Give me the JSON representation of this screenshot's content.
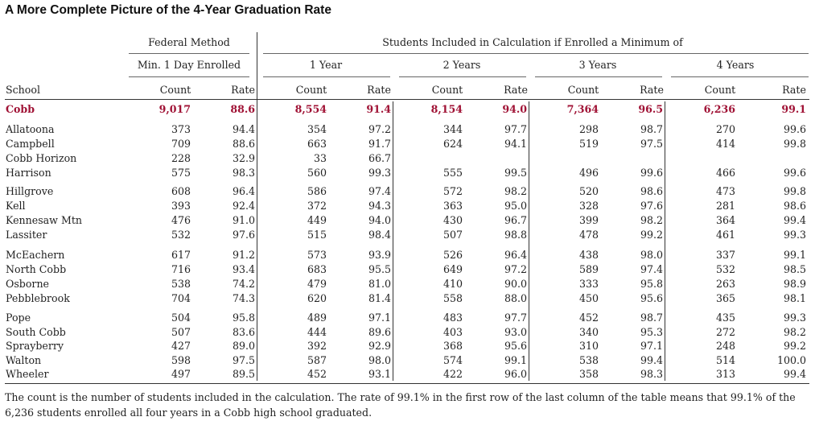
{
  "title": "A More Complete Picture of the 4-Year Graduation Rate",
  "header": {
    "federal_method": "Federal Method",
    "federal_sub": "Min. 1 Day Enrolled",
    "students_included": "Students Included in Calculation if Enrolled a Minimum of",
    "groups": [
      "1 Year",
      "2 Years",
      "3 Years",
      "4 Years"
    ],
    "school": "School",
    "count": "Count",
    "rate": "Rate"
  },
  "total": {
    "school": "Cobb",
    "values": [
      "9,017",
      "88.6",
      "8,554",
      "91.4",
      "8,154",
      "94.0",
      "7,364",
      "96.5",
      "6,236",
      "99.1"
    ]
  },
  "rows": [
    {
      "school": "Allatoona",
      "values": [
        "373",
        "94.4",
        "354",
        "97.2",
        "344",
        "97.7",
        "298",
        "98.7",
        "270",
        "99.6"
      ]
    },
    {
      "school": "Campbell",
      "values": [
        "709",
        "88.6",
        "663",
        "91.7",
        "624",
        "94.1",
        "519",
        "97.5",
        "414",
        "99.8"
      ]
    },
    {
      "school": "Cobb Horizon",
      "values": [
        "228",
        "32.9",
        "33",
        "66.7",
        "",
        "",
        "",
        "",
        "",
        ""
      ]
    },
    {
      "school": "Harrison",
      "values": [
        "575",
        "98.3",
        "560",
        "99.3",
        "555",
        "99.5",
        "496",
        "99.6",
        "466",
        "99.6"
      ]
    },
    {
      "school": "Hillgrove",
      "values": [
        "608",
        "96.4",
        "586",
        "97.4",
        "572",
        "98.2",
        "520",
        "98.6",
        "473",
        "99.8"
      ]
    },
    {
      "school": "Kell",
      "values": [
        "393",
        "92.4",
        "372",
        "94.3",
        "363",
        "95.0",
        "328",
        "97.6",
        "281",
        "98.6"
      ]
    },
    {
      "school": "Kennesaw Mtn",
      "values": [
        "476",
        "91.0",
        "449",
        "94.0",
        "430",
        "96.7",
        "399",
        "98.2",
        "364",
        "99.4"
      ]
    },
    {
      "school": "Lassiter",
      "values": [
        "532",
        "97.6",
        "515",
        "98.4",
        "507",
        "98.8",
        "478",
        "99.2",
        "461",
        "99.3"
      ]
    },
    {
      "school": "McEachern",
      "values": [
        "617",
        "91.2",
        "573",
        "93.9",
        "526",
        "96.4",
        "438",
        "98.0",
        "337",
        "99.1"
      ]
    },
    {
      "school": "North Cobb",
      "values": [
        "716",
        "93.4",
        "683",
        "95.5",
        "649",
        "97.2",
        "589",
        "97.4",
        "532",
        "98.5"
      ]
    },
    {
      "school": "Osborne",
      "values": [
        "538",
        "74.2",
        "479",
        "81.0",
        "410",
        "90.0",
        "333",
        "95.8",
        "263",
        "98.9"
      ]
    },
    {
      "school": "Pebblebrook",
      "values": [
        "704",
        "74.3",
        "620",
        "81.4",
        "558",
        "88.0",
        "450",
        "95.6",
        "365",
        "98.1"
      ]
    },
    {
      "school": "Pope",
      "values": [
        "504",
        "95.8",
        "489",
        "97.1",
        "483",
        "97.7",
        "452",
        "98.7",
        "435",
        "99.3"
      ]
    },
    {
      "school": "South Cobb",
      "values": [
        "507",
        "83.6",
        "444",
        "89.6",
        "403",
        "93.0",
        "340",
        "95.3",
        "272",
        "98.2"
      ]
    },
    {
      "school": "Sprayberry",
      "values": [
        "427",
        "89.0",
        "392",
        "92.9",
        "368",
        "95.6",
        "310",
        "97.1",
        "248",
        "99.2"
      ]
    },
    {
      "school": "Walton",
      "values": [
        "598",
        "97.5",
        "587",
        "98.0",
        "574",
        "99.1",
        "538",
        "99.4",
        "514",
        "100.0"
      ]
    },
    {
      "school": "Wheeler",
      "values": [
        "497",
        "89.5",
        "452",
        "93.1",
        "422",
        "96.0",
        "358",
        "98.3",
        "313",
        "99.4"
      ]
    }
  ],
  "note": "The count is the number of students included in the calculation. The rate of 99.1% in the first row of the last column of the table means that 99.1% of the 6,236 students enrolled all four years in a Cobb high school graduated.",
  "colors": {
    "highlight": "#a01235",
    "rule": "#333333"
  }
}
